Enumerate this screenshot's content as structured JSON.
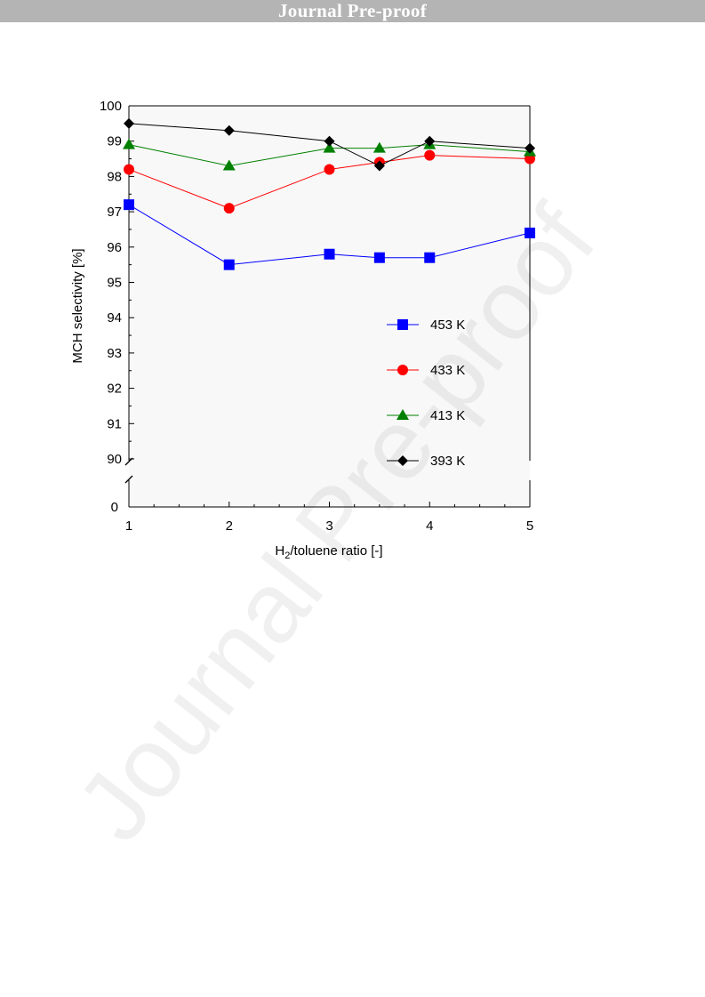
{
  "banner": {
    "text": "Journal Pre-proof"
  },
  "watermark": {
    "text": "Journal Pre-proof"
  },
  "chart_data": {
    "type": "line",
    "xlabel_main": "H",
    "xlabel_sub": "2",
    "xlabel_rest": "/toluene ratio [-]",
    "ylabel": "MCH selectivity [%]",
    "xlim": [
      1,
      5
    ],
    "ylim": [
      90,
      100
    ],
    "broken_axis_lower_value": 0,
    "x_ticks": [
      1,
      2,
      3,
      4,
      5
    ],
    "y_ticks": [
      90,
      91,
      92,
      93,
      94,
      95,
      96,
      97,
      98,
      99,
      100
    ],
    "y_tick_labels_extra": [
      "0"
    ],
    "grid": false,
    "legend_position": "lower-right",
    "series": [
      {
        "name": "453 K",
        "color": "#0000ff",
        "marker": "square",
        "x": [
          1,
          2,
          3,
          3.5,
          4,
          5
        ],
        "y": [
          97.2,
          95.5,
          95.8,
          95.7,
          95.7,
          96.4
        ]
      },
      {
        "name": "433 K",
        "color": "#ff0000",
        "marker": "circle",
        "x": [
          1,
          2,
          3,
          3.5,
          4,
          5
        ],
        "y": [
          98.2,
          97.1,
          98.2,
          98.4,
          98.6,
          98.5
        ]
      },
      {
        "name": "413 K",
        "color": "#008000",
        "marker": "triangle",
        "x": [
          1,
          2,
          3,
          3.5,
          4,
          5
        ],
        "y": [
          98.9,
          98.3,
          98.8,
          98.8,
          98.9,
          98.7
        ]
      },
      {
        "name": "393 K",
        "color": "#000000",
        "marker": "diamond",
        "x": [
          1,
          2,
          3,
          3.5,
          4,
          5
        ],
        "y": [
          99.5,
          99.3,
          99.0,
          98.3,
          99.0,
          98.8
        ]
      }
    ]
  }
}
